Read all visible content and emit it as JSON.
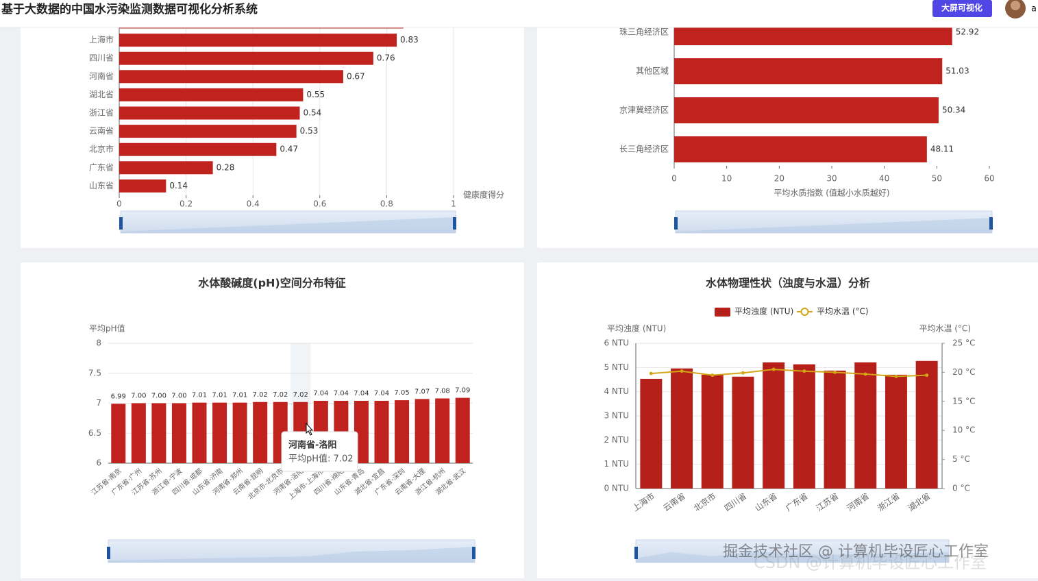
{
  "header": {
    "title": "基于大数据的中国水污染监测数据可视化分析系统",
    "button": "大屏可视化",
    "user": "a"
  },
  "watermark": {
    "lines": [
      "掘金技术社区 @ 计算机毕设匠心工作室",
      "CSDN @计算机毕设匠心工作室"
    ]
  },
  "chart_data": [
    {
      "type": "hbar",
      "categories": [
        null,
        "上海市",
        "四川省",
        "河南省",
        "湖北省",
        "浙江省",
        "云南省",
        "北京市",
        "广东省",
        "山东省"
      ],
      "values": [
        0.85,
        0.83,
        0.76,
        0.67,
        0.55,
        0.54,
        0.53,
        0.47,
        0.28,
        0.14
      ],
      "color": "#c0231e",
      "xlim": [
        0,
        1
      ],
      "xticks": [
        0,
        0.2,
        0.4,
        0.6,
        0.8,
        1
      ],
      "xlabel": "健康度得分",
      "grid": true
    },
    {
      "type": "hbar",
      "categories": [
        "珠三角经济区",
        "其他区域",
        "京津冀经济区",
        "长三角经济区"
      ],
      "values": [
        52.92,
        51.03,
        50.34,
        48.11
      ],
      "color": "#c0231e",
      "xlim": [
        0,
        60
      ],
      "xticks": [
        0,
        10,
        20,
        30,
        40,
        50,
        60
      ],
      "xlabel": "平均水质指数 (值越小水质越好)",
      "grid": false
    },
    {
      "type": "bar",
      "title": "水体酸碱度(pH)空间分布特征",
      "ylabel": "平均pH值",
      "categories": [
        "江苏省-南京",
        "广东省-广州",
        "江苏省-苏州",
        "浙江省-宁波",
        "四川省-成都",
        "山东省-济南",
        "河南省-郑州",
        "云南省-昆明",
        "北京市-北京市",
        "河南省-洛阳",
        "上海市-上海市",
        "四川省-绵阳",
        "山东省-青岛",
        "湖北省-宜昌",
        "广东省-深圳",
        "云南省-大理",
        "浙江省-杭州",
        "湖北省-武汉"
      ],
      "values": [
        6.99,
        7.0,
        7.0,
        7.0,
        7.01,
        7.01,
        7.01,
        7.02,
        7.02,
        7.02,
        7.04,
        7.04,
        7.04,
        7.04,
        7.05,
        7.07,
        7.08,
        7.09
      ],
      "value_labels": [
        "6.99",
        "7.00",
        "7.00",
        "7.00",
        "7.01",
        "7.01",
        "7.01",
        "7.02",
        "7.02",
        "7.02",
        "7.04",
        "7.04",
        "7.04",
        "7.04",
        "7.05",
        "7.07",
        "7.08",
        "7.09"
      ],
      "color": "#c0231e",
      "ylim": [
        6,
        8
      ],
      "yticks": [
        6,
        6.5,
        7,
        7.5,
        8
      ],
      "grid": true,
      "tooltip": {
        "title": "河南省-洛阳",
        "text": "平均pH值: 7.02"
      }
    },
    {
      "type": "bar-line",
      "title": "水体物理性状（浊度与水温）分析",
      "ylabel": "平均浊度 (NTU)",
      "y2label": "平均水温 (°C)",
      "categories": [
        "上海市",
        "云南省",
        "北京市",
        "四川省",
        "山东省",
        "广东省",
        "江苏省",
        "河南省",
        "浙江省",
        "湖北省"
      ],
      "series": [
        {
          "name": "平均浊度 (NTU)",
          "color": "#b5211a",
          "values": [
            4.53,
            4.96,
            4.7,
            4.62,
            5.21,
            5.13,
            4.87,
            5.21,
            4.7,
            5.27
          ]
        },
        {
          "name": "平均水温 (°C)",
          "color": "#d4a514",
          "axis": "y2",
          "values": [
            19.8,
            20.2,
            19.5,
            19.9,
            20.5,
            20.2,
            20.0,
            19.7,
            19.3,
            19.5
          ]
        }
      ],
      "ylim": [
        0,
        6
      ],
      "yticks": [
        {
          "value": 0,
          "label": "0 NTU"
        },
        {
          "value": 1,
          "label": "1 NTU"
        },
        {
          "value": 2,
          "label": "2 NTU"
        },
        {
          "value": 3,
          "label": "3 NTU"
        },
        {
          "value": 4,
          "label": "4 NTU"
        },
        {
          "value": 5,
          "label": "5 NTU"
        },
        {
          "value": 6,
          "label": "6 NTU"
        }
      ],
      "y2lim": [
        0,
        25
      ],
      "y2ticks": [
        {
          "value": 0,
          "label": "0 °C"
        },
        {
          "value": 5,
          "label": "5 °C"
        },
        {
          "value": 10,
          "label": "10 °C"
        },
        {
          "value": 15,
          "label": "15 °C"
        },
        {
          "value": 20,
          "label": "20 °C"
        },
        {
          "value": 25,
          "label": "25 °C"
        }
      ],
      "grid": true,
      "legend": "top"
    }
  ]
}
